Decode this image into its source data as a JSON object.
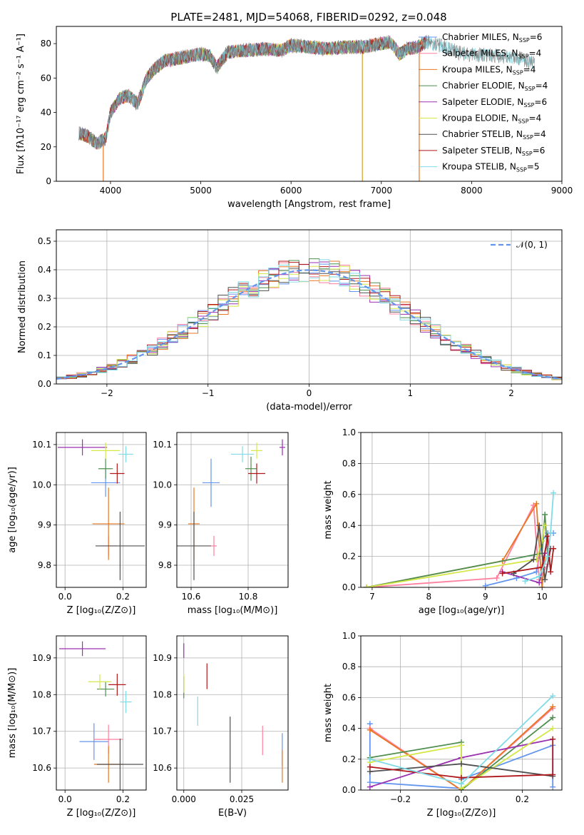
{
  "figure": {
    "title": "PLATE=2481, MJD=54068, FIBERID=0292, z=0.048"
  },
  "models": [
    {
      "name": "Chabrier MILES",
      "nssp": "6",
      "color": "#6495ed"
    },
    {
      "name": "Salpeter MILES",
      "nssp": "4",
      "color": "#ff7f9f"
    },
    {
      "name": "Kroupa MILES",
      "nssp": "4",
      "color": "#e87722"
    },
    {
      "name": "Chabrier ELODIE",
      "nssp": "4",
      "color": "#4f8f4f"
    },
    {
      "name": "Salpeter ELODIE",
      "nssp": "6",
      "color": "#9b30b0"
    },
    {
      "name": "Kroupa ELODIE",
      "nssp": "4",
      "color": "#d4e84a"
    },
    {
      "name": "Chabrier STELIB",
      "nssp": "4",
      "color": "#505050"
    },
    {
      "name": "Salpeter STELIB",
      "nssp": "6",
      "color": "#b0181c"
    },
    {
      "name": "Kroupa STELIB",
      "nssp": "5",
      "color": "#7fdbe6"
    }
  ],
  "chart_data": [
    {
      "id": "spectrum",
      "type": "line",
      "xlabel": "wavelength [Angstrom, rest frame]",
      "ylabel": "Flux [fλ10⁻¹⁷ erg cm⁻² s⁻¹ A⁻¹]",
      "xlim": [
        3400,
        9000
      ],
      "ylim": [
        0,
        90
      ],
      "xticks": [
        4000,
        5000,
        6000,
        7000,
        8000,
        9000
      ],
      "yticks": [
        0,
        20,
        40,
        60,
        80
      ],
      "continuum": [
        [
          3650,
          28
        ],
        [
          3750,
          26
        ],
        [
          3850,
          22
        ],
        [
          3950,
          25
        ],
        [
          4000,
          40
        ],
        [
          4100,
          48
        ],
        [
          4200,
          50
        ],
        [
          4300,
          45
        ],
        [
          4400,
          60
        ],
        [
          4500,
          66
        ],
        [
          4600,
          70
        ],
        [
          4700,
          71
        ],
        [
          4800,
          72
        ],
        [
          4900,
          73
        ],
        [
          5000,
          74
        ],
        [
          5100,
          73
        ],
        [
          5175,
          66
        ],
        [
          5300,
          75
        ],
        [
          5500,
          76
        ],
        [
          5700,
          77
        ],
        [
          5900,
          76
        ],
        [
          6000,
          79
        ],
        [
          6200,
          78
        ],
        [
          6400,
          77
        ],
        [
          6600,
          78
        ],
        [
          6800,
          78
        ],
        [
          7000,
          80
        ],
        [
          7100,
          81
        ],
        [
          7200,
          74
        ],
        [
          7300,
          77
        ],
        [
          7400,
          78
        ],
        [
          7500,
          81
        ],
        [
          7700,
          78
        ],
        [
          7900,
          74
        ],
        [
          8200,
          73
        ],
        [
          8500,
          72
        ],
        [
          8700,
          68
        ]
      ],
      "drop_lines": [
        {
          "x": 3920,
          "color": "#e87722"
        },
        {
          "x": 6790,
          "color": "#d4a020"
        },
        {
          "x": 7420,
          "color": "#e87722"
        }
      ],
      "legend_position": "right"
    },
    {
      "id": "residuals",
      "type": "histogram",
      "xlabel": "(data-model)/error",
      "ylabel": "Normed distribution",
      "xlim": [
        -2.5,
        2.5
      ],
      "ylim": [
        0,
        0.54
      ],
      "xticks": [
        -2,
        -1,
        0,
        1,
        2
      ],
      "yticks": [
        0,
        0.1,
        0.2,
        0.3,
        0.4,
        0.5
      ],
      "bin_width": 0.1,
      "legend": "𝒩(0, 1)",
      "legend_position": "top-right"
    },
    {
      "id": "age-vs-Z",
      "type": "errorbar",
      "xlabel": "Z [log₁₀(Z/Z⊙)]",
      "ylabel": "age  [log₁₀(age/yr)]",
      "xlim": [
        -0.03,
        0.28
      ],
      "ylim": [
        9.745,
        10.13
      ],
      "xticks": [
        0.0,
        0.2
      ],
      "yticks": [
        9.8,
        9.9,
        10.0,
        10.1
      ],
      "points": [
        {
          "x": 0.14,
          "y": 10.005,
          "xerr": 0.05,
          "yerr": 0.035
        },
        {
          "x": 0.15,
          "y": 9.848,
          "xerr": 0.03,
          "yerr": 0.025
        },
        {
          "x": 0.15,
          "y": 9.903,
          "xerr": 0.055,
          "yerr": 0.09
        },
        {
          "x": 0.14,
          "y": 10.04,
          "xerr": 0.025,
          "yerr": 0.025
        },
        {
          "x": 0.06,
          "y": 10.093,
          "xerr": 0.085,
          "yerr": 0.02
        },
        {
          "x": 0.14,
          "y": 10.085,
          "xerr": 0.05,
          "yerr": 0.02
        },
        {
          "x": 0.19,
          "y": 9.848,
          "xerr": 0.085,
          "yerr": 0.085
        },
        {
          "x": 0.18,
          "y": 10.028,
          "xerr": 0.025,
          "yerr": 0.025
        },
        {
          "x": 0.21,
          "y": 10.076,
          "xerr": 0.025,
          "yerr": 0.02
        }
      ]
    },
    {
      "id": "age-vs-mass",
      "type": "errorbar",
      "xlabel": "mass [log₁₀(M/M⊙)]",
      "ylabel": "",
      "xlim": [
        10.55,
        10.94
      ],
      "ylim": [
        9.745,
        10.13
      ],
      "xticks": [
        10.6,
        10.8
      ],
      "yticks": [
        9.8,
        9.9,
        10.0,
        10.1
      ],
      "points": [
        {
          "x": 10.67,
          "y": 10.005,
          "xerr": 0.03,
          "yerr": 0.06
        },
        {
          "x": 10.68,
          "y": 9.848,
          "xerr": 0.01,
          "yerr": 0.025
        },
        {
          "x": 10.61,
          "y": 9.903,
          "xerr": 0.02,
          "yerr": 0.09
        },
        {
          "x": 10.81,
          "y": 10.04,
          "xerr": 0.02,
          "yerr": 0.03
        },
        {
          "x": 10.92,
          "y": 10.093,
          "xerr": 0.01,
          "yerr": 0.02
        },
        {
          "x": 10.83,
          "y": 10.085,
          "xerr": 0.02,
          "yerr": 0.02
        },
        {
          "x": 10.61,
          "y": 9.848,
          "xerr": 0.06,
          "yerr": 0.085
        },
        {
          "x": 10.83,
          "y": 10.028,
          "xerr": 0.03,
          "yerr": 0.025
        },
        {
          "x": 10.78,
          "y": 10.076,
          "xerr": 0.04,
          "yerr": 0.02
        }
      ]
    },
    {
      "id": "mass-weight-vs-age",
      "type": "line",
      "xlabel": "age  [log₁₀(age/yr)]",
      "ylabel": "mass weight",
      "xlim": [
        6.8,
        10.35
      ],
      "ylim": [
        0,
        1.0
      ],
      "xticks": [
        7,
        8,
        9,
        10
      ],
      "yticks": [
        0.0,
        0.2,
        0.4,
        0.6,
        0.8,
        1.0
      ],
      "series": [
        {
          "points": [
            [
              9.0,
              0.01
            ],
            [
              9.55,
              0.06
            ],
            [
              9.9,
              0.1
            ],
            [
              10.0,
              0.3
            ],
            [
              10.1,
              0.35
            ],
            [
              10.2,
              0.35
            ]
          ]
        },
        {
          "points": [
            [
              6.9,
              0.0
            ],
            [
              9.2,
              0.06
            ],
            [
              9.85,
              0.53
            ],
            [
              9.95,
              0.05
            ],
            [
              10.1,
              0.15
            ]
          ]
        },
        {
          "points": [
            [
              6.9,
              0.0
            ],
            [
              9.3,
              0.17
            ],
            [
              9.9,
              0.54
            ],
            [
              10.0,
              0.0
            ],
            [
              10.05,
              0.2
            ]
          ]
        },
        {
          "points": [
            [
              6.9,
              0.0
            ],
            [
              10.0,
              0.22
            ],
            [
              10.05,
              0.47
            ],
            [
              10.1,
              0.2
            ]
          ]
        },
        {
          "points": [
            [
              9.3,
              0.1
            ],
            [
              9.95,
              0.03
            ],
            [
              10.05,
              0.22
            ],
            [
              10.1,
              0.33
            ]
          ]
        },
        {
          "points": [
            [
              6.9,
              0.0
            ],
            [
              9.9,
              0.18
            ],
            [
              10.0,
              0.3
            ],
            [
              10.05,
              0.4
            ]
          ]
        },
        {
          "points": [
            [
              9.5,
              0.09
            ],
            [
              9.85,
              0.18
            ],
            [
              9.95,
              0.4
            ],
            [
              10.05,
              0.05
            ],
            [
              10.15,
              0.25
            ]
          ]
        },
        {
          "points": [
            [
              9.3,
              0.09
            ],
            [
              10.0,
              0.13
            ],
            [
              10.1,
              0.33
            ],
            [
              10.15,
              0.1
            ],
            [
              10.2,
              0.25
            ]
          ]
        },
        {
          "points": [
            [
              9.7,
              0.04
            ],
            [
              9.95,
              0.07
            ],
            [
              10.1,
              0.2
            ],
            [
              10.15,
              0.35
            ],
            [
              10.2,
              0.61
            ]
          ]
        }
      ]
    },
    {
      "id": "mass-vs-Z",
      "type": "errorbar",
      "xlabel": "Z [log₁₀(Z/Z⊙)]",
      "ylabel": "mass [log₁₀(M/M⊙)]",
      "xlim": [
        -0.03,
        0.28
      ],
      "ylim": [
        10.54,
        10.96
      ],
      "xticks": [
        0.0,
        0.2
      ],
      "yticks": [
        10.6,
        10.7,
        10.8,
        10.9
      ],
      "points": [
        {
          "x": 0.1,
          "y": 10.672,
          "xerr": 0.05,
          "yerr": 0.05
        },
        {
          "x": 0.15,
          "y": 10.678,
          "xerr": 0.05,
          "yerr": 0.04
        },
        {
          "x": 0.15,
          "y": 10.61,
          "xerr": 0.05,
          "yerr": 0.05
        },
        {
          "x": 0.14,
          "y": 10.815,
          "xerr": 0.03,
          "yerr": 0.02
        },
        {
          "x": 0.06,
          "y": 10.925,
          "xerr": 0.08,
          "yerr": 0.02
        },
        {
          "x": 0.12,
          "y": 10.835,
          "xerr": 0.04,
          "yerr": 0.02
        },
        {
          "x": 0.19,
          "y": 10.61,
          "xerr": 0.08,
          "yerr": 0.07
        },
        {
          "x": 0.18,
          "y": 10.827,
          "xerr": 0.03,
          "yerr": 0.03
        },
        {
          "x": 0.21,
          "y": 10.78,
          "xerr": 0.02,
          "yerr": 0.03
        }
      ]
    },
    {
      "id": "mass-vs-ebv",
      "type": "errorbar",
      "xlabel": "E(B-V)",
      "ylabel": "",
      "xlim": [
        -0.003,
        0.045
      ],
      "ylim": [
        10.54,
        10.96
      ],
      "xticks": [
        0.0,
        0.025
      ],
      "tick_labels": [
        "0.000",
        "0.025"
      ],
      "yticks": [
        10.6,
        10.7,
        10.8,
        10.9
      ],
      "points": [
        {
          "x": 0.0425,
          "y": 10.65,
          "xerr": 0,
          "yerr": 0.045
        },
        {
          "x": 0.034,
          "y": 10.675,
          "xerr": 0,
          "yerr": 0.04
        },
        {
          "x": 0.0425,
          "y": 10.605,
          "xerr": 0,
          "yerr": 0.045
        },
        {
          "x": 0.0,
          "y": 10.82,
          "xerr": 0,
          "yerr": 0.03
        },
        {
          "x": 0.0,
          "y": 10.92,
          "xerr": 0,
          "yerr": 0.02
        },
        {
          "x": 0.0,
          "y": 10.83,
          "xerr": 0,
          "yerr": 0.025
        },
        {
          "x": 0.02,
          "y": 10.65,
          "xerr": 0,
          "yerr": 0.09
        },
        {
          "x": 0.01,
          "y": 10.85,
          "xerr": 0,
          "yerr": 0.035
        },
        {
          "x": 0.006,
          "y": 10.755,
          "xerr": 0,
          "yerr": 0.04
        }
      ]
    },
    {
      "id": "mass-weight-vs-Z",
      "type": "line",
      "xlabel": "Z [log₁₀(Z/Z⊙)]",
      "ylabel": "mass weight",
      "xlim": [
        -0.33,
        0.33
      ],
      "ylim": [
        0,
        1.0
      ],
      "xticks": [
        -0.2,
        0.0,
        0.2
      ],
      "yticks": [
        0.0,
        0.2,
        0.4,
        0.6,
        0.8,
        1.0
      ],
      "series": [
        {
          "points": [
            [
              -0.3,
              0.43
            ],
            [
              -0.3,
              0.05
            ],
            [
              0.0,
              0.01
            ],
            [
              0.0,
              0.07
            ],
            [
              0.3,
              0.29
            ],
            [
              0.3,
              0.02
            ]
          ]
        },
        {
          "points": [
            [
              -0.3,
              0.4
            ],
            [
              0.0,
              0.0
            ],
            [
              0.3,
              0.53
            ]
          ]
        },
        {
          "points": [
            [
              -0.3,
              0.39
            ],
            [
              0.0,
              0.0
            ],
            [
              0.3,
              0.54
            ]
          ]
        },
        {
          "points": [
            [
              -0.3,
              0.21
            ],
            [
              0.0,
              0.31
            ],
            [
              0.0,
              0.0
            ],
            [
              0.3,
              0.47
            ]
          ]
        },
        {
          "points": [
            [
              -0.3,
              0.02
            ],
            [
              0.0,
              0.21
            ],
            [
              0.3,
              0.33
            ]
          ]
        },
        {
          "points": [
            [
              -0.3,
              0.18
            ],
            [
              0.0,
              0.29
            ],
            [
              0.0,
              0.01
            ],
            [
              0.3,
              0.4
            ]
          ]
        },
        {
          "points": [
            [
              -0.3,
              0.12
            ],
            [
              0.0,
              0.17
            ],
            [
              0.3,
              0.09
            ]
          ]
        },
        {
          "points": [
            [
              -0.3,
              0.15
            ],
            [
              0.0,
              0.08
            ],
            [
              0.3,
              0.1
            ],
            [
              0.3,
              0.33
            ]
          ]
        },
        {
          "points": [
            [
              -0.3,
              0.2
            ],
            [
              0.0,
              0.04
            ],
            [
              0.3,
              0.61
            ]
          ]
        }
      ]
    }
  ]
}
